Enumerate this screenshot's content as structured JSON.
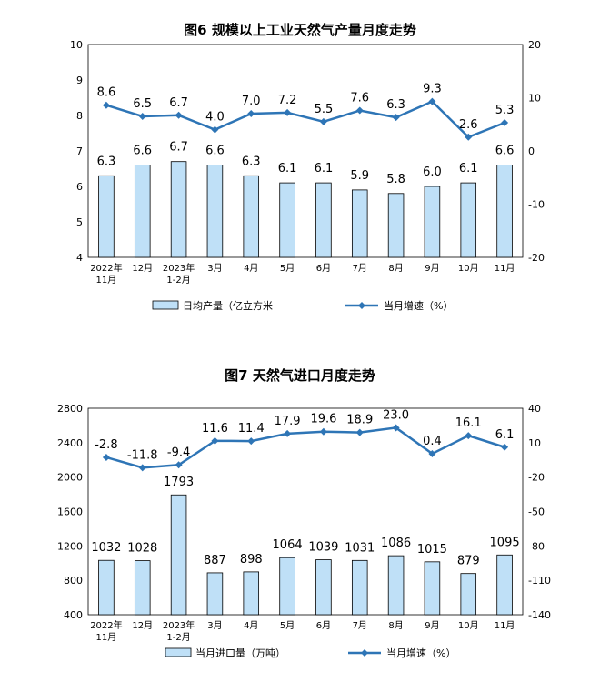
{
  "charts": [
    {
      "title": "图6  规模以上工业天然气产量月度走势",
      "legend": {
        "bar": "日均产量（亿立方米",
        "line": "当月增速（%）"
      },
      "left_ticks": [
        "10",
        "9",
        "8",
        "7",
        "6",
        "5",
        "4"
      ],
      "right_ticks": [
        "20",
        "10",
        "0",
        "-10",
        "-20"
      ]
    },
    {
      "title": "图7  天然气进口月度走势",
      "legend": {
        "bar": "当月进口量（万吨）",
        "line": "当月增速（%）"
      },
      "left_ticks": [
        "2800",
        "2400",
        "2000",
        "1600",
        "1200",
        "800",
        "400"
      ],
      "right_ticks": [
        "40",
        "10",
        "-20",
        "-50",
        "-80",
        "-110",
        "-140"
      ]
    }
  ],
  "chart_data": [
    {
      "type": "bar",
      "categories": [
        [
          "2022年",
          "11月"
        ],
        [
          "12月"
        ],
        [
          "2023年",
          "1-2月"
        ],
        [
          "3月"
        ],
        [
          "4月"
        ],
        [
          "5月"
        ],
        [
          "6月"
        ],
        [
          "7月"
        ],
        [
          "8月"
        ],
        [
          "9月"
        ],
        [
          "10月"
        ],
        [
          "11月"
        ]
      ],
      "series": [
        {
          "name": "日均产量（亿立方米",
          "type": "bar",
          "axis": "left",
          "values": [
            6.3,
            6.6,
            6.7,
            6.6,
            6.3,
            6.1,
            6.1,
            5.9,
            5.8,
            6.0,
            6.1,
            6.6
          ],
          "labels": [
            "6.3",
            "6.6",
            "6.7",
            "6.6",
            "6.3",
            "6.1",
            "6.1",
            "5.9",
            "5.8",
            "6.0",
            "6.1",
            "6.6"
          ]
        },
        {
          "name": "当月增速（%）",
          "type": "line",
          "axis": "right",
          "values": [
            8.6,
            6.5,
            6.7,
            4.0,
            7.0,
            7.2,
            5.5,
            7.6,
            6.3,
            9.3,
            2.6,
            5.3
          ],
          "labels": [
            "8.6",
            "6.5",
            "6.7",
            "4.0",
            "7.0",
            "7.2",
            "5.5",
            "7.6",
            "6.3",
            "9.3",
            "2.6",
            "5.3"
          ]
        }
      ],
      "ylim_left": [
        4,
        10
      ],
      "ylim_right": [
        -20,
        20
      ],
      "colors": {
        "bar_fill": "#bfe0f7",
        "bar_stroke": "#000000",
        "line": "#2e75b6"
      },
      "grid": false,
      "legend_position": "bottom"
    },
    {
      "type": "bar",
      "categories": [
        [
          "2022年",
          "11月"
        ],
        [
          "12月"
        ],
        [
          "2023年",
          "1-2月"
        ],
        [
          "3月"
        ],
        [
          "4月"
        ],
        [
          "5月"
        ],
        [
          "6月"
        ],
        [
          "7月"
        ],
        [
          "8月"
        ],
        [
          "9月"
        ],
        [
          "10月"
        ],
        [
          "11月"
        ]
      ],
      "series": [
        {
          "name": "当月进口量（万吨）",
          "type": "bar",
          "axis": "left",
          "values": [
            1032,
            1028,
            1793,
            887,
            898,
            1064,
            1039,
            1031,
            1086,
            1015,
            879,
            1095
          ],
          "labels": [
            "1032",
            "1028",
            "1793",
            "887",
            "898",
            "1064",
            "1039",
            "1031",
            "1086",
            "1015",
            "879",
            "1095"
          ]
        },
        {
          "name": "当月增速（%）",
          "type": "line",
          "axis": "right",
          "values": [
            -2.8,
            -11.8,
            -9.4,
            11.6,
            11.4,
            17.9,
            19.6,
            18.9,
            23.0,
            0.4,
            16.1,
            6.1
          ],
          "labels": [
            "-2.8",
            "-11.8",
            "-9.4",
            "11.6",
            "11.4",
            "17.9",
            "19.6",
            "18.9",
            "23.0",
            "0.4",
            "16.1",
            "6.1"
          ]
        }
      ],
      "ylim_left": [
        400,
        2800
      ],
      "ylim_right": [
        -140,
        40
      ],
      "colors": {
        "bar_fill": "#bfe0f7",
        "bar_stroke": "#000000",
        "line": "#2e75b6"
      },
      "grid": false,
      "legend_position": "bottom"
    }
  ]
}
